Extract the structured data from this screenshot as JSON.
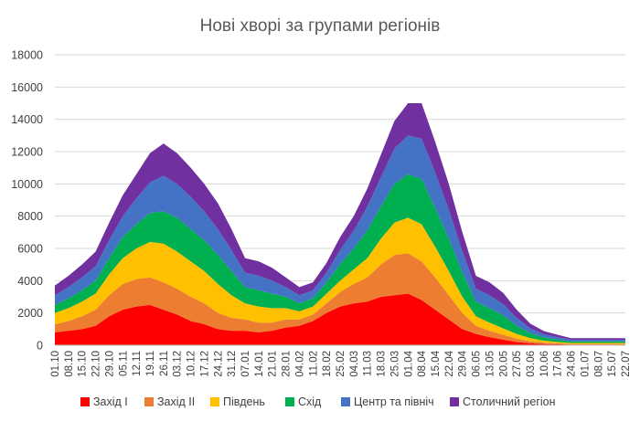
{
  "chart_data": {
    "type": "area",
    "stacked": true,
    "title": "Нові хворі за групами регіонів",
    "xlabel": "",
    "ylabel": "",
    "ylim": [
      0,
      18000
    ],
    "yticks": [
      0,
      2000,
      4000,
      6000,
      8000,
      10000,
      12000,
      14000,
      16000,
      18000
    ],
    "grid": true,
    "legend_position": "bottom",
    "x_tick_labels": [
      "01.10",
      "08.10",
      "15.10",
      "22.10",
      "29.10",
      "05.11",
      "12.11",
      "19.11",
      "26.11",
      "03.12",
      "10.12",
      "17.12",
      "24.12",
      "31.12",
      "07.01",
      "14.01",
      "21.01",
      "28.01",
      "04.02",
      "11.02",
      "18.02",
      "25.02",
      "04.03",
      "11.03",
      "18.03",
      "25.03",
      "01.04",
      "08.04",
      "15.04",
      "22.04",
      "29.04",
      "06.05",
      "13.05",
      "20.05",
      "27.05",
      "03.06",
      "10.06",
      "17.06",
      "24.06",
      "01.07",
      "08.07",
      "15.07",
      "22.07"
    ],
    "series": [
      {
        "name": "Захід I",
        "color": "#ff0000",
        "values": [
          800,
          900,
          1000,
          1200,
          1800,
          2200,
          2400,
          2500,
          2200,
          1900,
          1500,
          1300,
          1000,
          900,
          900,
          800,
          900,
          1100,
          1200,
          1500,
          2000,
          2400,
          2600,
          2700,
          3000,
          3100,
          3200,
          2800,
          2200,
          1600,
          1000,
          700,
          500,
          350,
          200,
          120,
          80,
          60,
          40,
          40,
          40,
          40,
          40
        ]
      },
      {
        "name": "Захід II",
        "color": "#ed7d31",
        "values": [
          500,
          600,
          800,
          1000,
          1300,
          1600,
          1700,
          1700,
          1700,
          1600,
          1500,
          1300,
          1000,
          800,
          700,
          600,
          500,
          500,
          400,
          400,
          600,
          900,
          1200,
          1500,
          2000,
          2500,
          2500,
          2400,
          2000,
          1500,
          1000,
          500,
          400,
          300,
          200,
          120,
          80,
          60,
          40,
          40,
          40,
          40,
          40
        ]
      },
      {
        "name": "Південь",
        "color": "#ffc000",
        "values": [
          700,
          800,
          900,
          1000,
          1300,
          1600,
          1900,
          2200,
          2400,
          2300,
          2200,
          2000,
          1800,
          1400,
          1000,
          1000,
          900,
          700,
          500,
          500,
          600,
          700,
          900,
          1200,
          1600,
          2000,
          2200,
          2300,
          1900,
          1500,
          1000,
          600,
          500,
          400,
          300,
          200,
          120,
          80,
          60,
          60,
          60,
          60,
          60
        ]
      },
      {
        "name": "Схід",
        "color": "#00b050",
        "values": [
          500,
          600,
          700,
          800,
          1000,
          1300,
          1500,
          1800,
          2000,
          2100,
          2000,
          1900,
          1800,
          1500,
          1000,
          1000,
          900,
          700,
          500,
          500,
          700,
          1000,
          1300,
          1700,
          2000,
          2400,
          2700,
          2800,
          2400,
          2000,
          1500,
          900,
          900,
          800,
          500,
          300,
          200,
          150,
          100,
          100,
          100,
          100,
          100
        ]
      },
      {
        "name": "Центр та північ",
        "color": "#4472c4",
        "values": [
          600,
          700,
          800,
          900,
          1100,
          1300,
          1600,
          1900,
          2200,
          2100,
          2000,
          1800,
          1600,
          1300,
          900,
          900,
          800,
          600,
          500,
          500,
          600,
          900,
          1100,
          1500,
          1800,
          2200,
          2400,
          2500,
          2200,
          1800,
          1300,
          800,
          800,
          700,
          500,
          300,
          200,
          150,
          100,
          100,
          100,
          100,
          100
        ]
      },
      {
        "name": "Столичний регіон",
        "color": "#7030a0",
        "values": [
          600,
          700,
          800,
          900,
          1100,
          1300,
          1500,
          1800,
          2000,
          1900,
          1800,
          1700,
          1600,
          1300,
          900,
          900,
          800,
          600,
          500,
          500,
          600,
          800,
          900,
          1100,
          1400,
          1700,
          2000,
          2200,
          1900,
          1600,
          1200,
          800,
          800,
          700,
          500,
          300,
          200,
          150,
          100,
          100,
          100,
          100,
          100
        ]
      }
    ]
  }
}
